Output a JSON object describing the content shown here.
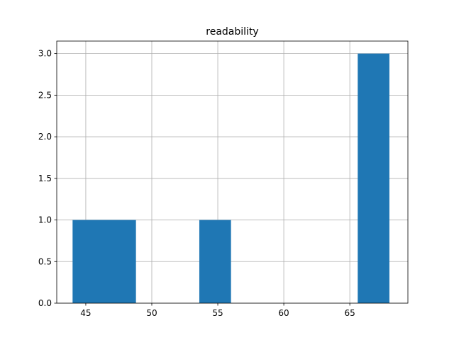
{
  "chart_data": {
    "type": "histogram",
    "title": "readability",
    "bins": [
      44,
      46.4,
      48.8,
      51.2,
      53.6,
      56,
      58.4,
      60.8,
      63.2,
      65.6,
      68
    ],
    "values": [
      1,
      1,
      0,
      0,
      1,
      0,
      0,
      0,
      0,
      3
    ],
    "color": "#1f77b4",
    "xlim": [
      42.8,
      69.4
    ],
    "xticks": [
      45,
      50,
      55,
      60,
      65
    ],
    "ylim": [
      0,
      3.15
    ],
    "yticks": [
      {
        "value": 0,
        "label": "0.0"
      },
      {
        "value": 0.5,
        "label": "0.5"
      },
      {
        "value": 1,
        "label": "1.0"
      },
      {
        "value": 1.5,
        "label": "1.5"
      },
      {
        "value": 2,
        "label": "2.0"
      },
      {
        "value": 2.5,
        "label": "2.5"
      },
      {
        "value": 3,
        "label": "3.0"
      }
    ],
    "grid": true
  }
}
